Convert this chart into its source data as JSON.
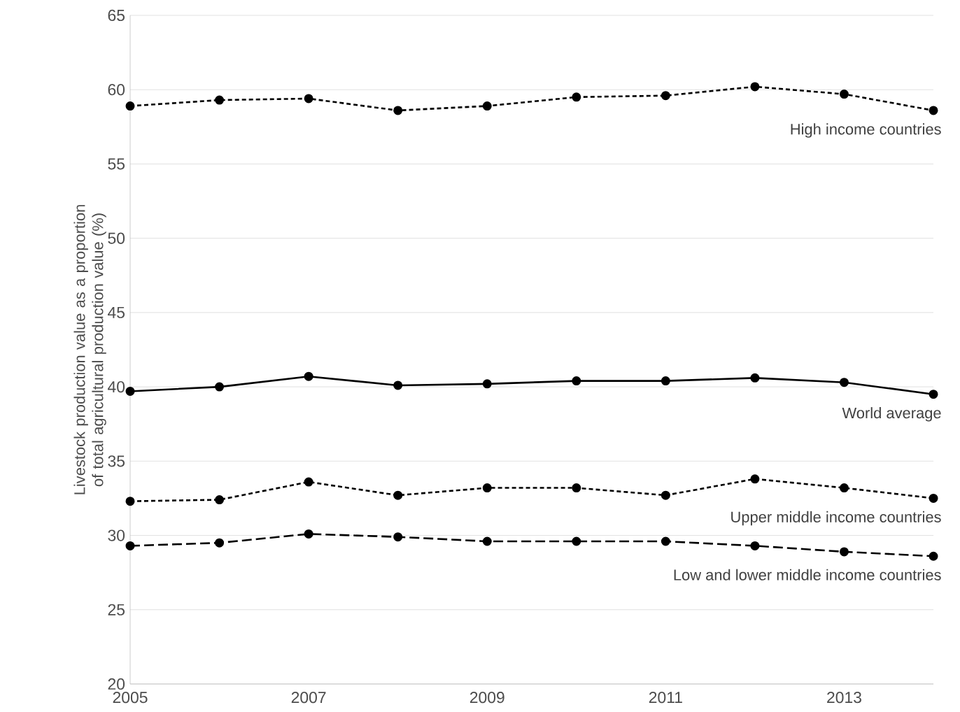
{
  "chart_data": {
    "type": "line",
    "ylabel": "Livestock production value as a proportion of total agricultural production value (%)",
    "x": [
      2005,
      2006,
      2007,
      2008,
      2009,
      2010,
      2011,
      2012,
      2013,
      2014
    ],
    "series": [
      {
        "name": "High income countries",
        "color": "#000000",
        "line_style": "dotted",
        "values": [
          58.9,
          59.3,
          59.4,
          58.6,
          58.9,
          59.5,
          59.6,
          60.2,
          59.7,
          58.6
        ]
      },
      {
        "name": "World average",
        "color": "#000000",
        "line_style": "solid",
        "values": [
          39.7,
          40.0,
          40.7,
          40.1,
          40.2,
          40.4,
          40.4,
          40.6,
          40.3,
          39.5
        ]
      },
      {
        "name": "Upper middle income countries",
        "color": "#000000",
        "line_style": "dotted",
        "values": [
          32.3,
          32.4,
          33.6,
          32.7,
          33.2,
          33.2,
          32.7,
          33.8,
          33.2,
          32.5
        ]
      },
      {
        "name": "Low and lower middle income countries",
        "color": "#000000",
        "line_style": "dashed",
        "values": [
          29.3,
          29.5,
          30.1,
          29.9,
          29.6,
          29.6,
          29.6,
          29.3,
          28.9,
          28.6
        ]
      }
    ],
    "xlim": [
      2005,
      2014
    ],
    "xticks": [
      2005,
      2007,
      2009,
      2011,
      2013
    ],
    "ylim": [
      20,
      65
    ],
    "yticks": [
      20,
      25,
      30,
      35,
      40,
      45,
      50,
      55,
      60,
      65
    ],
    "grid": "y",
    "marker": "circle",
    "legend": false
  }
}
